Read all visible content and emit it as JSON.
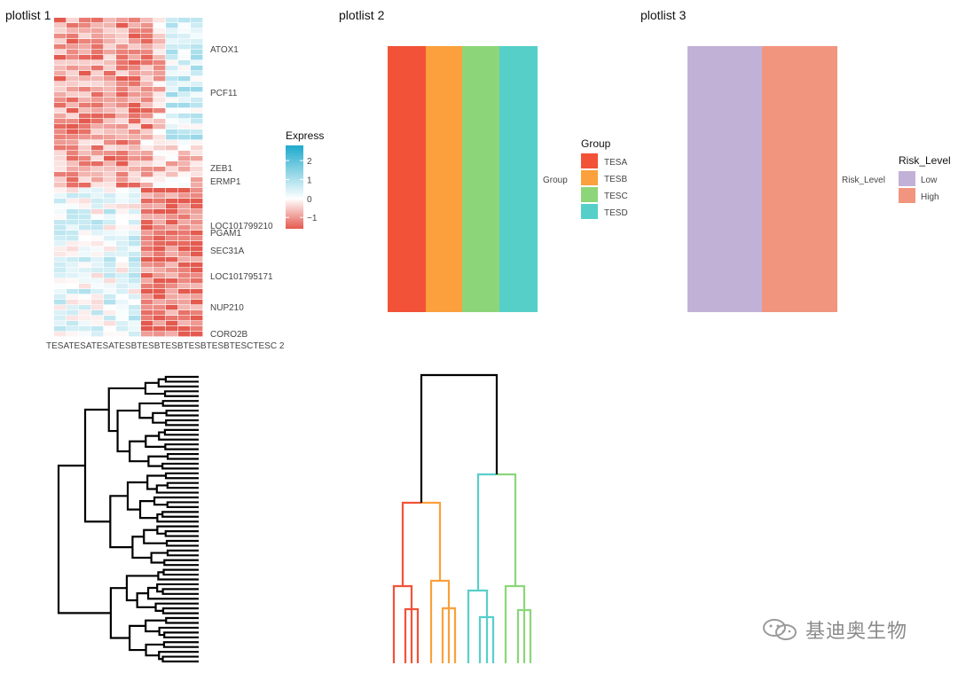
{
  "titles": {
    "p1": "plotlist 1",
    "p2": "plotlist 2",
    "p3": "plotlist 3"
  },
  "heatmap": {
    "row_labels": [
      "ATOX1",
      "PCF11",
      "ZEB1",
      "ERMP1",
      "LOC101799210",
      "PGAM1",
      "SEC31A",
      "LOC101795171",
      "NUP210",
      "CORO2B"
    ],
    "col_labels": [
      "TESA 1",
      "TESA 2",
      "TESA 3",
      "TESB 1",
      "TESB 2",
      "TESB 3",
      "TESB 4",
      "TESB 5",
      "TESC 1",
      "TESC 2"
    ],
    "col_label_line": "TESATESATESATESBTESBTESBTESBTESBTESCTESC 2",
    "legend_title": "Express",
    "legend_ticks": [
      "2",
      "1",
      "0",
      "−1"
    ],
    "legend_tick_values": [
      2,
      1,
      0,
      -1
    ],
    "legend_range": [
      -1.6,
      2.8
    ],
    "colors": {
      "low": "#e45a4f",
      "mid": "#ffffff",
      "high": "#1eaacd"
    }
  },
  "group_bar": {
    "label": "Group",
    "legend_title": "Group",
    "items": [
      {
        "name": "TESA",
        "color": "#f25238"
      },
      {
        "name": "TESB",
        "color": "#fba03c"
      },
      {
        "name": "TESC",
        "color": "#8cd679"
      },
      {
        "name": "TESD",
        "color": "#57cfc9"
      }
    ]
  },
  "risk_bar": {
    "label": "Risk_Level",
    "legend_title": "Risk_Level",
    "items": [
      {
        "name": "Low",
        "color": "#c2b1d6"
      },
      {
        "name": "High",
        "color": "#f2957e"
      }
    ]
  },
  "dendrogram_colors": {
    "black": "#000000"
  },
  "watermark": "基迪奥生物",
  "chart_data": [
    {
      "type": "heatmap",
      "title": "plotlist 1",
      "rows": [
        "ATOX1",
        "PCF11",
        "ZEB1",
        "ERMP1",
        "LOC101799210",
        "PGAM1",
        "SEC31A",
        "LOC101795171",
        "NUP210",
        "CORO2B"
      ],
      "colorbar": {
        "label": "Express",
        "ticks": [
          2,
          1,
          0,
          -1
        ]
      }
    },
    {
      "type": "bar",
      "title": "plotlist 2",
      "categories": [
        "TESA",
        "TESB",
        "TESC",
        "TESD"
      ],
      "legend": "Group"
    },
    {
      "type": "bar",
      "title": "plotlist 3",
      "categories": [
        "Low",
        "High"
      ],
      "legend": "Risk_Level"
    }
  ]
}
